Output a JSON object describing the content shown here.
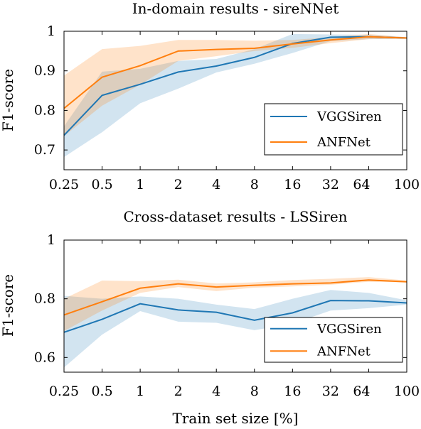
{
  "chart_data": [
    {
      "type": "line",
      "title": "In-domain results - sireNNet",
      "xlabel": "",
      "ylabel": "F1-score",
      "x": [
        0.25,
        0.5,
        1,
        2,
        4,
        8,
        16,
        32,
        64,
        100
      ],
      "xticklabels": [
        "0.25",
        "0.5",
        "1",
        "2",
        "4",
        "8",
        "16",
        "32",
        "64",
        "100"
      ],
      "xscale": "log",
      "ylim": [
        0.65,
        1.0
      ],
      "yticks": [
        0.7,
        0.8,
        0.9,
        1.0
      ],
      "yticklabels": [
        "0.7",
        "0.8",
        "0.9",
        "1"
      ],
      "legend_position": "lower-right",
      "series": [
        {
          "name": "VGGSiren",
          "color": "#1f77b4",
          "values": [
            0.737,
            0.838,
            0.866,
            0.897,
            0.912,
            0.934,
            0.969,
            0.985,
            0.986,
            0.983
          ],
          "lower": [
            0.682,
            0.745,
            0.818,
            0.855,
            0.896,
            0.918,
            0.945,
            0.975,
            0.98,
            0.981
          ],
          "upper": [
            0.76,
            0.898,
            0.905,
            0.925,
            0.93,
            0.955,
            0.993,
            0.992,
            0.991,
            0.985
          ]
        },
        {
          "name": "ANFNet",
          "color": "#ff7f0e",
          "values": [
            0.805,
            0.884,
            0.913,
            0.95,
            0.954,
            0.957,
            0.968,
            0.978,
            0.986,
            0.983
          ],
          "lower": [
            0.735,
            0.812,
            0.865,
            0.925,
            0.937,
            0.95,
            0.958,
            0.97,
            0.98,
            0.981
          ],
          "upper": [
            0.888,
            0.955,
            0.963,
            0.978,
            0.978,
            0.976,
            0.978,
            0.985,
            0.993,
            0.985
          ]
        }
      ]
    },
    {
      "type": "line",
      "title": "Cross-dataset results - LSSiren",
      "xlabel": "Train set size [%]",
      "ylabel": "F1-score",
      "x": [
        0.25,
        0.5,
        1,
        2,
        4,
        8,
        16,
        32,
        64,
        100
      ],
      "xticklabels": [
        "0.25",
        "0.5",
        "1",
        "2",
        "4",
        "8",
        "16",
        "32",
        "64",
        "100"
      ],
      "xscale": "log",
      "ylim": [
        0.55,
        1.0
      ],
      "yticks": [
        0.6,
        0.8,
        1.0
      ],
      "yticklabels": [
        "0.6",
        "0.8",
        "1"
      ],
      "legend_position": "lower-right",
      "series": [
        {
          "name": "VGGSiren",
          "color": "#1f77b4",
          "values": [
            0.686,
            0.73,
            0.783,
            0.762,
            0.754,
            0.727,
            0.752,
            0.794,
            0.793,
            0.786
          ],
          "lower": [
            0.566,
            0.678,
            0.758,
            0.722,
            0.718,
            0.693,
            0.715,
            0.76,
            0.768,
            0.78
          ],
          "upper": [
            0.81,
            0.8,
            0.808,
            0.8,
            0.78,
            0.765,
            0.8,
            0.83,
            0.82,
            0.795
          ]
        },
        {
          "name": "ANFNet",
          "color": "#ff7f0e",
          "values": [
            0.745,
            0.79,
            0.836,
            0.851,
            0.84,
            0.846,
            0.851,
            0.854,
            0.864,
            0.858
          ],
          "lower": [
            0.69,
            0.76,
            0.82,
            0.84,
            0.826,
            0.838,
            0.842,
            0.848,
            0.858,
            0.856
          ],
          "upper": [
            0.8,
            0.862,
            0.86,
            0.865,
            0.852,
            0.856,
            0.864,
            0.868,
            0.874,
            0.862
          ]
        }
      ]
    }
  ]
}
